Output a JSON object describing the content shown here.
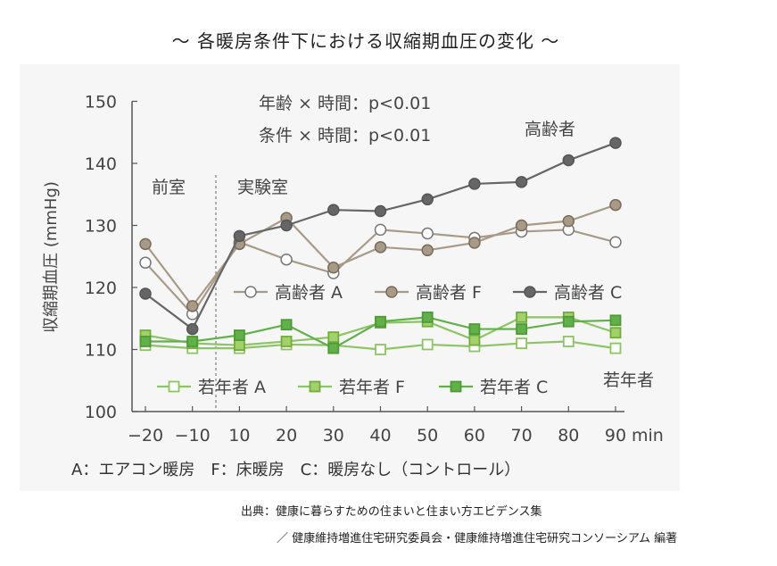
{
  "title": "～ 各暖房条件下における収縮期血圧の変化 ～",
  "caption": "出典：健康に暮らすための住まいと住まい方エビデンス集",
  "source": "／ 健康維持増進住宅研究委員会・健康維持増進住宅研究コンソーシアム 編著",
  "legend_note": "A：エアコン暖房　F：床暖房　C：暖房なし（コントロール）",
  "colors": {
    "elderly_light": "#a89a87",
    "elderly_dark": "#666666",
    "young": "#8cc466",
    "young_dark": "#62b04a",
    "axis": "#555555"
  },
  "chart_data": {
    "type": "line",
    "ylabel": "収縮期血圧 (mmHg)",
    "x_unit": "min",
    "x": [
      -20,
      -10,
      10,
      20,
      30,
      40,
      50,
      60,
      70,
      80,
      90
    ],
    "x_tick_labels": [
      "−20",
      "−10",
      "10",
      "20",
      "30",
      "40",
      "50",
      "60",
      "70",
      "80",
      "90"
    ],
    "ylim": [
      100,
      150
    ],
    "y_ticks": [
      100,
      110,
      120,
      130,
      140,
      150
    ],
    "phase_labels": [
      "前室",
      "実験室"
    ],
    "stats": [
      "年齢 × 時間：p<0.01",
      "条件 × 時間：p<0.01"
    ],
    "group_labels": {
      "elderly": "高齢者",
      "young": "若年者"
    },
    "series": [
      {
        "name": "高齢者 A",
        "values": [
          124,
          115.7,
          127.3,
          124.5,
          122.3,
          129.3,
          128.7,
          128.0,
          129.0,
          129.3,
          127.3
        ]
      },
      {
        "name": "高齢者 F",
        "values": [
          127,
          117,
          127,
          131.2,
          123.2,
          126.5,
          126.0,
          127.2,
          130.0,
          130.7,
          133.3
        ]
      },
      {
        "name": "高齢者 C",
        "values": [
          119,
          113.3,
          128.3,
          130.0,
          132.5,
          132.3,
          134.2,
          136.7,
          137.0,
          140.5,
          143.3
        ]
      },
      {
        "name": "若年者 A",
        "values": [
          110.7,
          110.2,
          110.2,
          110.8,
          110.7,
          110.0,
          110.8,
          110.5,
          111.0,
          111.3,
          110.2
        ]
      },
      {
        "name": "若年者 F",
        "values": [
          112.3,
          111.0,
          110.7,
          111.3,
          112.0,
          114.3,
          114.5,
          111.5,
          115.2,
          115.2,
          112.7
        ]
      },
      {
        "name": "若年者 C",
        "values": [
          111.3,
          111.3,
          112.3,
          114.0,
          110.2,
          114.5,
          115.2,
          113.3,
          113.3,
          114.5,
          114.7
        ]
      }
    ]
  }
}
